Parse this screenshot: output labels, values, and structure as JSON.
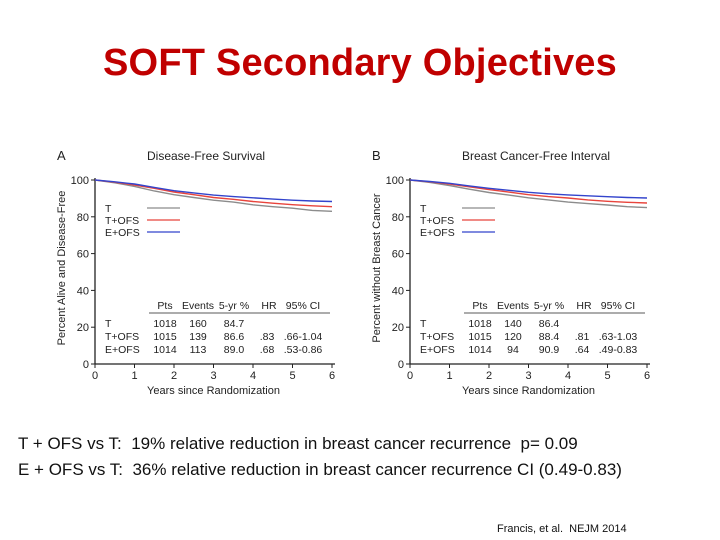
{
  "slide": {
    "title": "SOFT Secondary Objectives",
    "summary": [
      "T + OFS vs T:  19% relative reduction in breast cancer recurrence  p= 0.09",
      "E + OFS vs T:  36% relative reduction in breast cancer recurrence CI (0.49-0.83)"
    ],
    "citation": "Francis, et al.  NEJM 2014"
  },
  "colors": {
    "title": "#c00000",
    "T": "#8c8c8c",
    "T+OFS": "#e8443c",
    "E+OFS": "#3344cc"
  },
  "chart_data": [
    {
      "type": "line",
      "panel_letter": "A",
      "title": "Disease-Free Survival",
      "xlabel": "Years since Randomization",
      "ylabel": "Percent Alive and Disease-Free",
      "xlim": [
        0,
        6
      ],
      "ylim": [
        0,
        100
      ],
      "x_ticks": [
        "0",
        "1",
        "2",
        "3",
        "4",
        "5",
        "6"
      ],
      "y_ticks": [
        "0",
        "20",
        "40",
        "60",
        "80",
        "100"
      ],
      "legend": [
        "T",
        "T+OFS",
        "E+OFS"
      ],
      "series": [
        {
          "name": "T",
          "x": [
            0,
            0.5,
            1,
            1.5,
            2,
            2.5,
            3,
            3.5,
            4,
            4.5,
            5,
            5.5,
            6
          ],
          "values": [
            100,
            98.5,
            96.5,
            94,
            92,
            90.5,
            89,
            88,
            86.5,
            85.5,
            84.7,
            83.5,
            83
          ]
        },
        {
          "name": "T+OFS",
          "x": [
            0,
            0.5,
            1,
            1.5,
            2,
            2.5,
            3,
            3.5,
            4,
            4.5,
            5,
            5.5,
            6
          ],
          "values": [
            100,
            98.8,
            97.3,
            95.5,
            93.5,
            92,
            90.5,
            89.5,
            88.3,
            87.4,
            86.6,
            86,
            85.5
          ]
        },
        {
          "name": "E+OFS",
          "x": [
            0,
            0.5,
            1,
            1.5,
            2,
            2.5,
            3,
            3.5,
            4,
            4.5,
            5,
            5.5,
            6
          ],
          "values": [
            100,
            99,
            97.8,
            96,
            94.2,
            93,
            91.8,
            91,
            90.3,
            89.6,
            89,
            88.6,
            88.3
          ]
        }
      ],
      "table": {
        "headers": [
          "Pts",
          "Events",
          "5-yr %",
          "HR",
          "95% CI"
        ],
        "rows": [
          {
            "arm": "T",
            "pts": "1018",
            "events": "160",
            "yr5": "84.7",
            "hr": "",
            "ci": ""
          },
          {
            "arm": "T+OFS",
            "pts": "1015",
            "events": "139",
            "yr5": "86.6",
            "hr": ".83",
            "ci": ".66-1.04"
          },
          {
            "arm": "E+OFS",
            "pts": "1014",
            "events": "113",
            "yr5": "89.0",
            "hr": ".68",
            "ci": ".53-0.86"
          }
        ]
      }
    },
    {
      "type": "line",
      "panel_letter": "B",
      "title": "Breast Cancer-Free Interval",
      "xlabel": "Years since Randomization",
      "ylabel": "Percent without Breast Cancer",
      "xlim": [
        0,
        6
      ],
      "ylim": [
        0,
        100
      ],
      "x_ticks": [
        "0",
        "1",
        "2",
        "3",
        "4",
        "5",
        "6"
      ],
      "y_ticks": [
        "0",
        "20",
        "40",
        "60",
        "80",
        "100"
      ],
      "legend": [
        "T",
        "T+OFS",
        "E+OFS"
      ],
      "series": [
        {
          "name": "T",
          "x": [
            0,
            0.5,
            1,
            1.5,
            2,
            2.5,
            3,
            3.5,
            4,
            4.5,
            5,
            5.5,
            6
          ],
          "values": [
            100,
            98.7,
            97,
            95,
            93.2,
            91.8,
            90.3,
            89.2,
            88,
            87.2,
            86.4,
            85.5,
            85
          ]
        },
        {
          "name": "T+OFS",
          "x": [
            0,
            0.5,
            1,
            1.5,
            2,
            2.5,
            3,
            3.5,
            4,
            4.5,
            5,
            5.5,
            6
          ],
          "values": [
            100,
            99,
            97.8,
            96.3,
            94.8,
            93.4,
            92,
            91,
            90.2,
            89.2,
            88.4,
            87.9,
            87.5
          ]
        },
        {
          "name": "E+OFS",
          "x": [
            0,
            0.5,
            1,
            1.5,
            2,
            2.5,
            3,
            3.5,
            4,
            4.5,
            5,
            5.5,
            6
          ],
          "values": [
            100,
            99.2,
            98.2,
            96.8,
            95.5,
            94.4,
            93.3,
            92.5,
            91.9,
            91.4,
            90.9,
            90.5,
            90.2
          ]
        }
      ],
      "table": {
        "headers": [
          "Pts",
          "Events",
          "5-yr %",
          "HR",
          "95% CI"
        ],
        "rows": [
          {
            "arm": "T",
            "pts": "1018",
            "events": "140",
            "yr5": "86.4",
            "hr": "",
            "ci": ""
          },
          {
            "arm": "T+OFS",
            "pts": "1015",
            "events": "120",
            "yr5": "88.4",
            "hr": ".81",
            "ci": ".63-1.03"
          },
          {
            "arm": "E+OFS",
            "pts": "1014",
            "events": "94",
            "yr5": "90.9",
            "hr": ".64",
            "ci": ".49-0.83"
          }
        ]
      }
    }
  ]
}
